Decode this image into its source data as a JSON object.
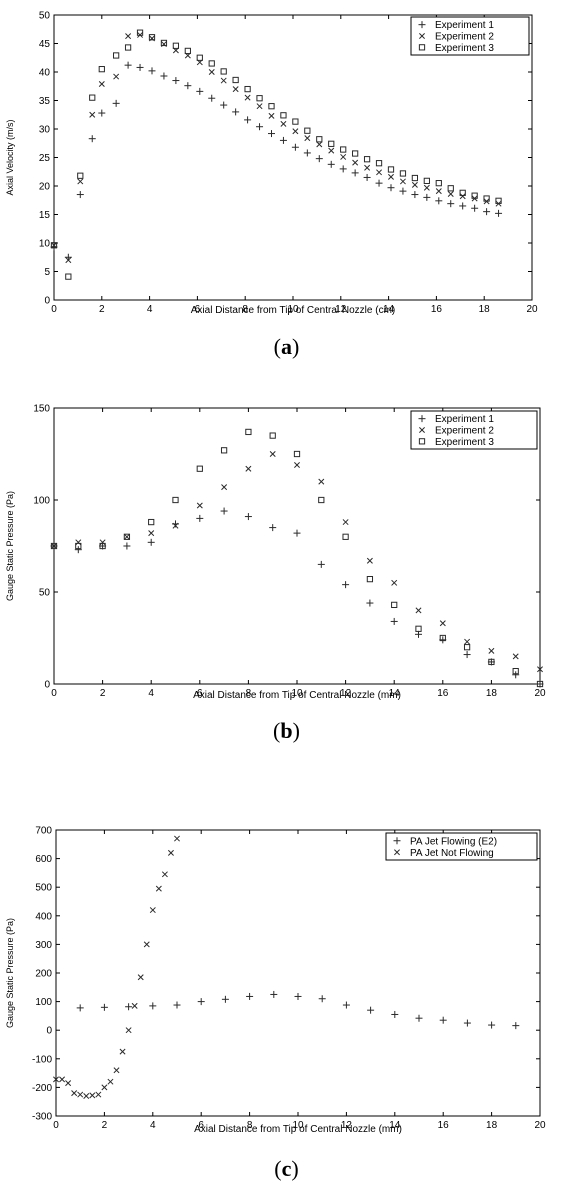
{
  "colors": {
    "marker": "#2a2a2a",
    "axis": "#000000",
    "background": "#ffffff"
  },
  "chart_data": [
    {
      "type": "scatter",
      "panel_label": "a",
      "xlabel": "Axial Distance from Tip of Central Nozzle (cm)",
      "ylabel": "Axial Velocity (m/s)",
      "xlim": [
        0,
        20
      ],
      "ylim": [
        0,
        50
      ],
      "xticks": [
        "0",
        "2",
        "4",
        "6",
        "8",
        "10",
        "12",
        "14",
        "16",
        "18",
        "20"
      ],
      "yticks": [
        "0",
        "5",
        "10",
        "15",
        "20",
        "25",
        "30",
        "35",
        "40",
        "45",
        "50"
      ],
      "legend_position": "top-right",
      "series": [
        {
          "name": "Experiment 1",
          "marker": "plus",
          "x": [
            0,
            0.6,
            1.1,
            1.6,
            2.0,
            2.6,
            3.1,
            3.6,
            4.1,
            4.6,
            5.1,
            5.6,
            6.1,
            6.6,
            7.1,
            7.6,
            8.1,
            8.6,
            9.1,
            9.6,
            10.1,
            10.6,
            11.1,
            11.6,
            12.1,
            12.6,
            13.1,
            13.6,
            14.1,
            14.6,
            15.1,
            15.6,
            16.1,
            16.6,
            17.1,
            17.6,
            18.1,
            18.6
          ],
          "y": [
            9.3,
            7.5,
            18.5,
            28.3,
            32.8,
            34.5,
            41.2,
            40.8,
            40.2,
            39.3,
            38.5,
            37.6,
            36.6,
            35.4,
            34.2,
            33.0,
            31.6,
            30.4,
            29.2,
            28.0,
            26.8,
            25.8,
            24.8,
            23.8,
            23.0,
            22.3,
            21.5,
            20.5,
            19.7,
            19.1,
            18.5,
            18.0,
            17.4,
            16.9,
            16.5,
            16.1,
            15.5,
            15.2
          ]
        },
        {
          "name": "Experiment 2",
          "marker": "x",
          "x": [
            0,
            0.6,
            1.1,
            1.6,
            2.0,
            2.6,
            3.1,
            3.6,
            4.1,
            4.6,
            5.1,
            5.6,
            6.1,
            6.6,
            7.1,
            7.6,
            8.1,
            8.6,
            9.1,
            9.6,
            10.1,
            10.6,
            11.1,
            11.6,
            12.1,
            12.6,
            13.1,
            13.6,
            14.1,
            14.6,
            15.1,
            15.6,
            16.1,
            16.6,
            17.1,
            17.6,
            18.1,
            18.6
          ],
          "y": [
            9.6,
            7.0,
            20.8,
            32.5,
            37.9,
            39.2,
            46.3,
            46.5,
            45.9,
            44.9,
            43.8,
            42.9,
            41.7,
            40.0,
            38.5,
            37.0,
            35.5,
            34.0,
            32.3,
            30.9,
            29.6,
            28.4,
            27.3,
            26.2,
            25.1,
            24.1,
            23.2,
            22.4,
            21.6,
            20.8,
            20.2,
            19.7,
            19.1,
            18.6,
            18.2,
            17.8,
            17.3,
            16.9
          ]
        },
        {
          "name": "Experiment 3",
          "marker": "square",
          "x": [
            0,
            0.6,
            1.1,
            1.6,
            2.0,
            2.6,
            3.1,
            3.6,
            4.1,
            4.6,
            5.1,
            5.6,
            6.1,
            6.6,
            7.1,
            7.6,
            8.1,
            8.6,
            9.1,
            9.6,
            10.1,
            10.6,
            11.1,
            11.6,
            12.1,
            12.6,
            13.1,
            13.6,
            14.1,
            14.6,
            15.1,
            15.6,
            16.1,
            16.6,
            17.1,
            17.6,
            18.1,
            18.6
          ],
          "y": [
            9.6,
            4.1,
            21.8,
            35.5,
            40.5,
            42.9,
            44.3,
            46.9,
            46.1,
            45.1,
            44.6,
            43.7,
            42.5,
            41.5,
            40.1,
            38.6,
            37.0,
            35.4,
            34.0,
            32.4,
            31.3,
            29.7,
            28.2,
            27.4,
            26.4,
            25.7,
            24.7,
            24.0,
            22.9,
            22.2,
            21.4,
            20.9,
            20.5,
            19.6,
            18.8,
            18.3,
            17.8,
            17.4
          ]
        }
      ]
    },
    {
      "type": "scatter",
      "panel_label": "b",
      "xlabel": "Axial Distance from Tip of Central Nozzle (mm)",
      "ylabel": "Gauge Static Pressure (Pa)",
      "xlim": [
        0,
        20
      ],
      "ylim": [
        0,
        150
      ],
      "xticks": [
        "0",
        "2",
        "4",
        "6",
        "8",
        "10",
        "12",
        "14",
        "16",
        "18",
        "20"
      ],
      "yticks": [
        "0",
        "50",
        "100",
        "150"
      ],
      "legend_position": "top-right",
      "series": [
        {
          "name": "Experiment 1",
          "marker": "plus",
          "x": [
            0,
            1,
            2,
            3,
            4,
            5,
            6,
            7,
            8,
            9,
            10,
            11,
            12,
            13,
            14,
            15,
            16,
            17,
            18,
            19,
            20
          ],
          "y": [
            75,
            73,
            75,
            75,
            77,
            87,
            90,
            94,
            91,
            85,
            82,
            65,
            54,
            44,
            34,
            27,
            24,
            16,
            12,
            5,
            0
          ]
        },
        {
          "name": "Experiment 2",
          "marker": "x",
          "x": [
            0,
            1,
            2,
            3,
            4,
            5,
            6,
            7,
            8,
            9,
            10,
            11,
            12,
            13,
            14,
            15,
            16,
            17,
            18,
            19,
            20
          ],
          "y": [
            75,
            77,
            77,
            80,
            82,
            86,
            97,
            107,
            117,
            125,
            119,
            110,
            88,
            67,
            55,
            40,
            33,
            23,
            18,
            15,
            8
          ]
        },
        {
          "name": "Experiment 3",
          "marker": "square",
          "x": [
            0,
            1,
            2,
            3,
            4,
            5,
            6,
            7,
            8,
            9,
            10,
            11,
            12,
            13,
            14,
            15,
            16,
            17,
            18,
            19,
            20
          ],
          "y": [
            75,
            75,
            75,
            80,
            88,
            100,
            117,
            127,
            137,
            135,
            125,
            100,
            80,
            57,
            43,
            30,
            25,
            20,
            12,
            7,
            0
          ]
        }
      ]
    },
    {
      "type": "scatter",
      "panel_label": "c",
      "xlabel": "Axial Distance from Tip of Central Nozzle (mm)",
      "ylabel": "Gauge Static Pressure (Pa)",
      "xlim": [
        0,
        20
      ],
      "ylim": [
        -300,
        700
      ],
      "xticks": [
        "0",
        "2",
        "4",
        "6",
        "8",
        "10",
        "12",
        "14",
        "16",
        "18",
        "20"
      ],
      "yticks": [
        "-300",
        "-200",
        "-100",
        "0",
        "100",
        "200",
        "300",
        "400",
        "500",
        "600",
        "700"
      ],
      "legend_position": "top-right",
      "series": [
        {
          "name": "PA Jet Flowing (E2)",
          "marker": "plus",
          "x": [
            1,
            2,
            3,
            4,
            5,
            6,
            7,
            8,
            9,
            10,
            11,
            12,
            13,
            14,
            15,
            16,
            17,
            18,
            19
          ],
          "y": [
            78,
            80,
            82,
            85,
            88,
            100,
            108,
            118,
            125,
            118,
            110,
            88,
            70,
            55,
            42,
            35,
            25,
            18,
            16
          ]
        },
        {
          "name": "PA Jet Not Flowing",
          "marker": "x",
          "x": [
            0,
            0.25,
            0.5,
            0.75,
            1.0,
            1.25,
            1.5,
            1.75,
            2.0,
            2.25,
            2.5,
            2.75,
            3.0,
            3.25,
            3.5,
            3.75,
            4.0,
            4.25,
            4.5,
            4.75,
            5.0
          ],
          "y": [
            -172,
            -172,
            -185,
            -220,
            -225,
            -230,
            -228,
            -225,
            -200,
            -180,
            -140,
            -75,
            0,
            85,
            185,
            300,
            420,
            495,
            545,
            620,
            670
          ]
        }
      ]
    }
  ],
  "captions": [
    "a",
    "b",
    "c"
  ]
}
